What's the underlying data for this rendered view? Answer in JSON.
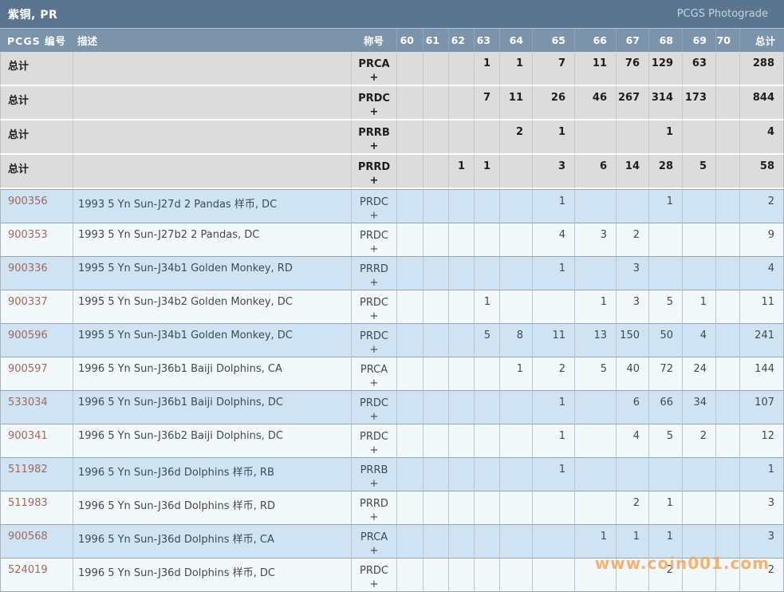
{
  "title_bar": {
    "title": "紫铜, PR",
    "photograde_label": "PCGS Photograde"
  },
  "watermark": "www.coin001.com",
  "colors": {
    "title_bar_bg": "#5b7490",
    "header_bg": "#7b94ab",
    "summary_row_bg": "#dcdcdc",
    "row_blue_bg": "#cfe3f2",
    "row_light_bg": "#f3f8fb",
    "pcgs_number_color": "#9c6a5f",
    "watermark_color": "#f5a350"
  },
  "table": {
    "headers": [
      "PCGS 编号",
      "描述",
      "称号",
      "60",
      "61",
      "62",
      "63",
      "64",
      "65",
      "66",
      "67",
      "68",
      "69",
      "70",
      "总计"
    ],
    "rows": [
      {
        "type": "summary",
        "id": "总计",
        "desc": "",
        "designation": "PRCA",
        "suffix": "+",
        "values": [
          "",
          "",
          "",
          "1",
          "1",
          "7",
          "11",
          "76",
          "129",
          "63",
          ""
        ],
        "total": "288"
      },
      {
        "type": "summary",
        "id": "总计",
        "desc": "",
        "designation": "PRDC",
        "suffix": "+",
        "values": [
          "",
          "",
          "",
          "7",
          "11",
          "26",
          "46",
          "267",
          "314",
          "173",
          ""
        ],
        "total": "844"
      },
      {
        "type": "summary",
        "id": "总计",
        "desc": "",
        "designation": "PRRB",
        "suffix": "+",
        "values": [
          "",
          "",
          "",
          "",
          "2",
          "1",
          "",
          "",
          "1",
          "",
          ""
        ],
        "total": "4"
      },
      {
        "type": "summary",
        "id": "总计",
        "desc": "",
        "designation": "PRRD",
        "suffix": "+",
        "values": [
          "",
          "",
          "1",
          "1",
          "",
          "3",
          "6",
          "14",
          "28",
          "5",
          ""
        ],
        "total": "58"
      },
      {
        "type": "data",
        "id": "900356",
        "desc": "1993 5 Yn Sun-J27d 2 Pandas 样币, DC",
        "designation": "PRDC",
        "suffix": "+",
        "values": [
          "",
          "",
          "",
          "",
          "",
          "1",
          "",
          "",
          "1",
          "",
          ""
        ],
        "total": "2"
      },
      {
        "type": "data",
        "id": "900353",
        "desc": "1993 5 Yn Sun-J27b2 2 Pandas, DC",
        "designation": "PRDC",
        "suffix": "+",
        "values": [
          "",
          "",
          "",
          "",
          "",
          "4",
          "3",
          "2",
          "",
          "",
          ""
        ],
        "total": "9"
      },
      {
        "type": "data",
        "id": "900336",
        "desc": "1995 5 Yn Sun-J34b1 Golden Monkey, RD",
        "designation": "PRRD",
        "suffix": "+",
        "values": [
          "",
          "",
          "",
          "",
          "",
          "1",
          "",
          "3",
          "",
          "",
          ""
        ],
        "total": "4"
      },
      {
        "type": "data",
        "id": "900337",
        "desc": "1995 5 Yn Sun-J34b2 Golden Monkey, DC",
        "designation": "PRDC",
        "suffix": "+",
        "values": [
          "",
          "",
          "",
          "1",
          "",
          "",
          "1",
          "3",
          "5",
          "1",
          ""
        ],
        "total": "11"
      },
      {
        "type": "data",
        "id": "900596",
        "desc": "1995 5 Yn Sun-J34b1 Golden Monkey, DC",
        "designation": "PRDC",
        "suffix": "+",
        "values": [
          "",
          "",
          "",
          "5",
          "8",
          "11",
          "13",
          "150",
          "50",
          "4",
          ""
        ],
        "total": "241"
      },
      {
        "type": "data",
        "id": "900597",
        "desc": "1996 5 Yn Sun-J36b1 Baiji Dolphins, CA",
        "designation": "PRCA",
        "suffix": "+",
        "values": [
          "",
          "",
          "",
          "",
          "1",
          "2",
          "5",
          "40",
          "72",
          "24",
          ""
        ],
        "total": "144"
      },
      {
        "type": "data",
        "id": "533034",
        "desc": "1996 5 Yn Sun-J36b1 Baiji Dolphins, DC",
        "designation": "PRDC",
        "suffix": "+",
        "values": [
          "",
          "",
          "",
          "",
          "",
          "1",
          "",
          "6",
          "66",
          "34",
          ""
        ],
        "total": "107"
      },
      {
        "type": "data",
        "id": "900341",
        "desc": "1996 5 Yn Sun-J36b2 Baiji Dolphins, DC",
        "designation": "PRDC",
        "suffix": "+",
        "values": [
          "",
          "",
          "",
          "",
          "",
          "1",
          "",
          "4",
          "5",
          "2",
          ""
        ],
        "total": "12"
      },
      {
        "type": "data",
        "id": "511982",
        "desc": "1996 5 Yn Sun-J36d Dolphins 样币, RB",
        "designation": "PRRB",
        "suffix": "+",
        "values": [
          "",
          "",
          "",
          "",
          "",
          "1",
          "",
          "",
          "",
          "",
          ""
        ],
        "total": "1"
      },
      {
        "type": "data",
        "id": "511983",
        "desc": "1996 5 Yn Sun-J36d Dolphins 样币, RD",
        "designation": "PRRD",
        "suffix": "+",
        "values": [
          "",
          "",
          "",
          "",
          "",
          "",
          "",
          "2",
          "1",
          "",
          ""
        ],
        "total": "3"
      },
      {
        "type": "data",
        "id": "900568",
        "desc": "1996 5 Yn Sun-J36d Dolphins 样币, CA",
        "designation": "PRCA",
        "suffix": "+",
        "values": [
          "",
          "",
          "",
          "",
          "",
          "",
          "1",
          "1",
          "1",
          "",
          ""
        ],
        "total": "3"
      },
      {
        "type": "data",
        "id": "524019",
        "desc": "1996 5 Yn Sun-J36d Dolphins 样币, DC",
        "designation": "PRDC",
        "suffix": "+",
        "values": [
          "",
          "",
          "",
          "",
          "",
          "",
          "",
          "",
          "2",
          "",
          ""
        ],
        "total": "2"
      }
    ]
  }
}
